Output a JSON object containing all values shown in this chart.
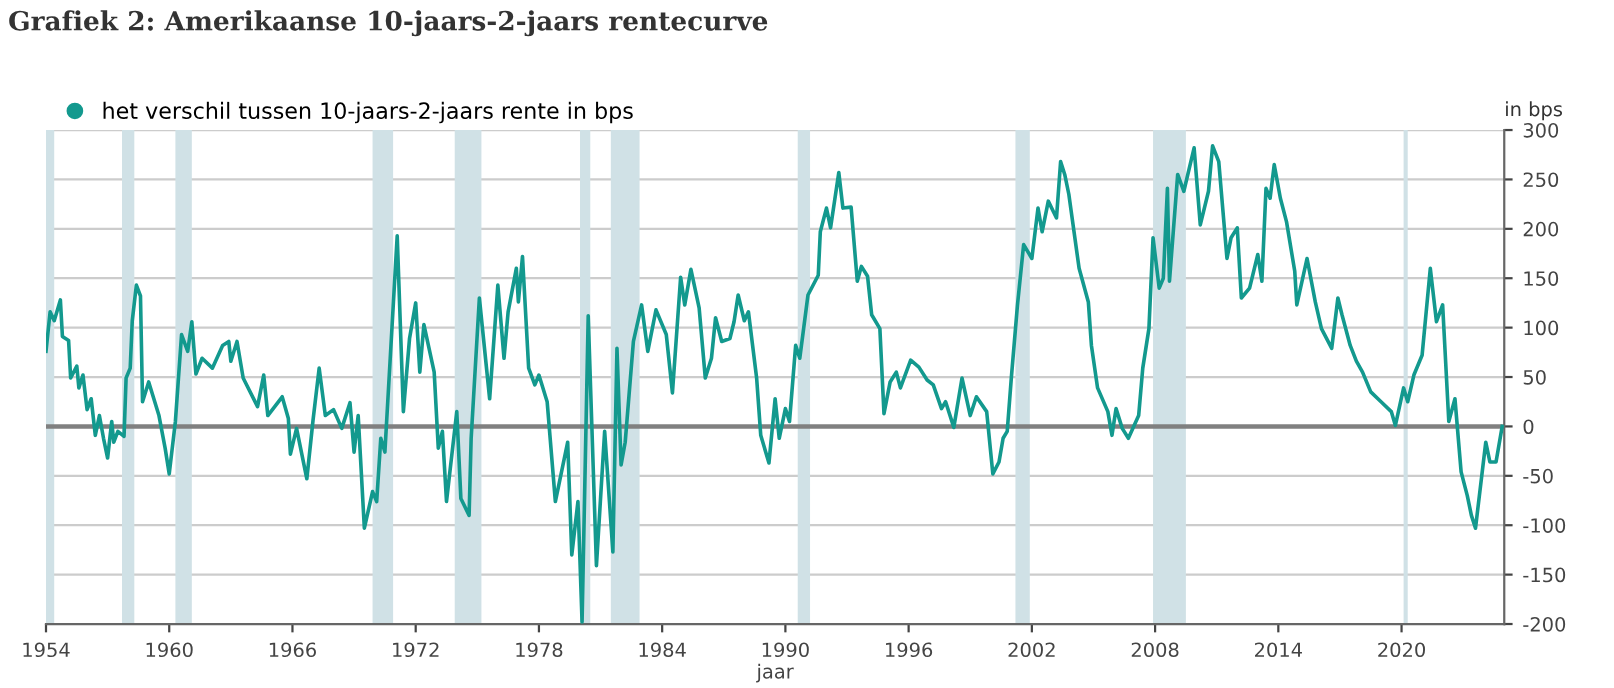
{
  "chart_data": {
    "type": "line",
    "title": "Grafiek 2: Amerikaanse 10-jaars-2-jaars rentecurve",
    "xlabel": "jaar",
    "ylabel": "in bps",
    "series": [
      {
        "name": "het verschil tussen 10-jaars-2-jaars rente in bps",
        "color": "#13998e",
        "x": [
          1954.0,
          1954.2,
          1954.4,
          1954.7,
          1954.8,
          1955.1,
          1955.2,
          1955.5,
          1955.6,
          1955.8,
          1956.0,
          1956.2,
          1956.4,
          1956.6,
          1956.8,
          1957.0,
          1957.2,
          1957.3,
          1957.5,
          1957.8,
          1957.9,
          1958.1,
          1958.2,
          1958.4,
          1958.6,
          1958.7,
          1959.0,
          1959.5,
          1959.8,
          1960.0,
          1960.3,
          1960.6,
          1960.9,
          1961.1,
          1961.3,
          1961.6,
          1962.1,
          1962.6,
          1962.9,
          1963.0,
          1963.3,
          1963.6,
          1964.3,
          1964.6,
          1964.8,
          1965.5,
          1965.8,
          1965.9,
          1966.2,
          1966.7,
          1967.0,
          1967.3,
          1967.6,
          1968.0,
          1968.4,
          1968.8,
          1969.0,
          1969.2,
          1969.5,
          1969.9,
          1970.1,
          1970.3,
          1970.5,
          1971.1,
          1971.4,
          1971.7,
          1972.0,
          1972.2,
          1972.4,
          1972.9,
          1973.1,
          1973.3,
          1973.5,
          1974.0,
          1974.2,
          1974.6,
          1974.7,
          1975.1,
          1975.6,
          1976.0,
          1976.3,
          1976.5,
          1976.9,
          1977.0,
          1977.2,
          1977.5,
          1977.8,
          1978.0,
          1978.4,
          1978.8,
          1979.4,
          1979.6,
          1979.9,
          1980.1,
          1980.4,
          1980.8,
          1981.2,
          1981.6,
          1981.8,
          1982.0,
          1982.2,
          1982.6,
          1983.0,
          1983.3,
          1983.7,
          1984.2,
          1984.5,
          1984.9,
          1985.1,
          1985.4,
          1985.8,
          1986.1,
          1986.4,
          1986.6,
          1986.9,
          1987.3,
          1987.5,
          1987.7,
          1988.0,
          1988.2,
          1988.6,
          1988.8,
          1989.2,
          1989.5,
          1989.7,
          1990.0,
          1990.2,
          1990.5,
          1990.7,
          1991.1,
          1991.6,
          1991.7,
          1992.0,
          1992.2,
          1992.6,
          1992.8,
          1993.2,
          1993.5,
          1993.7,
          1994.0,
          1994.2,
          1994.6,
          1994.8,
          1995.1,
          1995.4,
          1995.6,
          1996.1,
          1996.5,
          1996.9,
          1997.2,
          1997.6,
          1997.8,
          1998.2,
          1998.6,
          1999.0,
          1999.3,
          1999.8,
          2000.1,
          2000.4,
          2000.6,
          2000.8,
          2001.0,
          2001.3,
          2001.6,
          2002.0,
          2002.3,
          2002.5,
          2002.8,
          2003.2,
          2003.4,
          2003.6,
          2003.8,
          2004.3,
          2004.75,
          2004.9,
          2005.2,
          2005.7,
          2005.9,
          2006.1,
          2006.4,
          2006.7,
          2007.2,
          2007.4,
          2007.7,
          2007.9,
          2008.2,
          2008.4,
          2008.6,
          2008.7,
          2009.1,
          2009.4,
          2009.9,
          2010.2,
          2010.6,
          2010.8,
          2011.1,
          2011.5,
          2011.7,
          2012.0,
          2012.2,
          2012.6,
          2013.0,
          2013.2,
          2013.4,
          2013.6,
          2013.8,
          2014.1,
          2014.4,
          2014.8,
          2014.9,
          2015.4,
          2015.8,
          2016.1,
          2016.6,
          2016.9,
          2017.1,
          2017.5,
          2017.8,
          2018.1,
          2018.5,
          2019.0,
          2019.5,
          2019.7,
          2020.1,
          2020.3,
          2020.6,
          2021.0,
          2021.4,
          2021.7,
          2022.0,
          2022.3,
          2022.6,
          2022.9,
          2023.2,
          2023.4,
          2023.6,
          2024.1,
          2024.3,
          2024.6,
          2024.9
        ],
        "values": [
          76,
          116,
          107,
          128,
          91,
          87,
          49,
          61,
          39,
          52,
          17,
          28,
          -9,
          11,
          -12,
          -32,
          5,
          -16,
          -5,
          -10,
          49,
          59,
          107,
          143,
          132,
          25,
          45,
          11,
          -22,
          -48,
          5,
          93,
          76,
          106,
          53,
          69,
          59,
          82,
          86,
          66,
          86,
          49,
          20,
          52,
          11,
          30,
          8,
          -28,
          -2,
          -53,
          6,
          59,
          11,
          17,
          -2,
          24,
          -26,
          11,
          -103,
          -66,
          -76,
          -12,
          -26,
          193,
          15,
          89,
          125,
          55,
          103,
          55,
          -22,
          -5,
          -76,
          15,
          -73,
          -90,
          -12,
          130,
          28,
          143,
          69,
          116,
          160,
          126,
          172,
          59,
          42,
          52,
          25,
          -76,
          -16,
          -130,
          -76,
          -198,
          112,
          -141,
          -5,
          -127,
          79,
          -39,
          -16,
          86,
          123,
          76,
          118,
          93,
          34,
          151,
          123,
          159,
          120,
          49,
          69,
          110,
          86,
          89,
          106,
          133,
          107,
          116,
          49,
          -9,
          -37,
          28,
          -12,
          18,
          5,
          82,
          69,
          133,
          153,
          197,
          221,
          201,
          257,
          221,
          222,
          147,
          162,
          152,
          113,
          99,
          13,
          45,
          55,
          39,
          67,
          60,
          47,
          42,
          18,
          25,
          -1,
          49,
          11,
          30,
          15,
          -48,
          -36,
          -12,
          -5,
          49,
          123,
          184,
          170,
          221,
          197,
          228,
          211,
          268,
          255,
          235,
          160,
          126,
          82,
          39,
          15,
          -9,
          18,
          -2,
          -12,
          11,
          59,
          99,
          191,
          140,
          150,
          241,
          147,
          255,
          238,
          282,
          204,
          238,
          284,
          268,
          170,
          191,
          201,
          130,
          140,
          174,
          147,
          241,
          231,
          265,
          231,
          207,
          157,
          123,
          170,
          126,
          99,
          79,
          130,
          113,
          82,
          66,
          55,
          35,
          25,
          15,
          1,
          39,
          25,
          52,
          72,
          160,
          106,
          123,
          5,
          28,
          -46,
          -70,
          -90,
          -103,
          -16,
          -36,
          -36,
          0
        ]
      }
    ],
    "xlim": [
      1954,
      2025
    ],
    "xticks": [
      1954,
      1960,
      1966,
      1972,
      1978,
      1984,
      1990,
      1996,
      2002,
      2008,
      2014,
      2020
    ],
    "ylim": [
      -200,
      300
    ],
    "yticks": [
      -200,
      -150,
      -100,
      -50,
      0,
      50,
      100,
      150,
      200,
      250,
      300
    ],
    "grid": "y",
    "legend": "top left",
    "ref_lines": [
      {
        "axis": "y",
        "value": 0,
        "color": "#808080"
      }
    ],
    "bands": [
      {
        "axis": "x",
        "from": 1954.0,
        "to": 1954.4,
        "color": "#d0e1e6"
      },
      {
        "axis": "x",
        "from": 1957.7,
        "to": 1958.3,
        "color": "#d0e1e6"
      },
      {
        "axis": "x",
        "from": 1960.3,
        "to": 1961.1,
        "color": "#d0e1e6"
      },
      {
        "axis": "x",
        "from": 1969.9,
        "to": 1970.9,
        "color": "#d0e1e6"
      },
      {
        "axis": "x",
        "from": 1973.9,
        "to": 1975.2,
        "color": "#d0e1e6"
      },
      {
        "axis": "x",
        "from": 1980.0,
        "to": 1980.5,
        "color": "#d0e1e6"
      },
      {
        "axis": "x",
        "from": 1981.5,
        "to": 1982.9,
        "color": "#d0e1e6"
      },
      {
        "axis": "x",
        "from": 1990.6,
        "to": 1991.2,
        "color": "#d0e1e6"
      },
      {
        "axis": "x",
        "from": 2001.2,
        "to": 2001.9,
        "color": "#d0e1e6"
      },
      {
        "axis": "x",
        "from": 2007.9,
        "to": 2009.5,
        "color": "#d0e1e6"
      },
      {
        "axis": "x",
        "from": 2020.1,
        "to": 2020.3,
        "color": "#d0e1e6"
      }
    ]
  }
}
